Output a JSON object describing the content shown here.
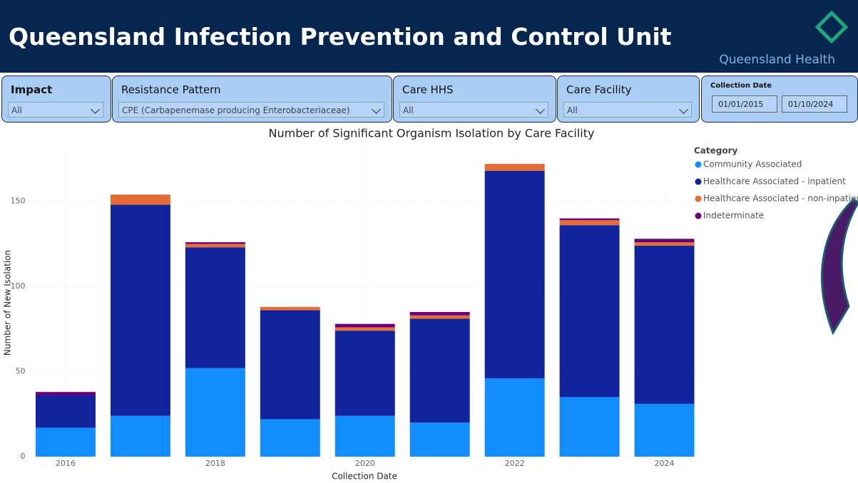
{
  "header": {
    "title": "Queensland Infection Prevention and Control Unit",
    "brand": "Queensland Health"
  },
  "filters": [
    {
      "label": "Impact",
      "value": "All"
    },
    {
      "label": "Resistance Pattern",
      "value": "CPE (Carbapenemase producing Enterobacteriaceae)"
    },
    {
      "label": "Care HHS",
      "value": "All"
    },
    {
      "label": "Care Facility",
      "value": "All"
    }
  ],
  "date_filter": {
    "label": "Collection Date",
    "start": "01/01/2015",
    "end": "01/10/2024"
  },
  "chart_data": {
    "type": "stacked_bar",
    "title": "Number of Significant Organism Isolation by Care Facility",
    "x_label": "Collection Date",
    "y_label": "Number of New Isolation",
    "x": [
      2016,
      2017,
      2018,
      2019,
      2020,
      2021,
      2022,
      2023,
      2024
    ],
    "xlim": [
      2015.5,
      2024.5
    ],
    "xticks": [
      2016,
      2018,
      2020,
      2022,
      2024
    ],
    "ylim": [
      0,
      180
    ],
    "yticks": [
      0,
      50,
      100,
      150
    ],
    "grid": true,
    "legend_title": "Category",
    "legend": "top-right",
    "series": [
      {
        "name": "Community Associated",
        "color": "#118dff",
        "values": [
          17,
          24,
          52,
          22,
          24,
          20,
          46,
          35,
          31
        ]
      },
      {
        "name": "Healthcare Associated - inpatient",
        "color": "#12239e",
        "values": [
          19,
          124,
          71,
          64,
          50,
          61,
          122,
          101,
          93
        ]
      },
      {
        "name": "Healthcare Associated - non-inpatient",
        "color": "#e66c37",
        "values": [
          0,
          6,
          2,
          2,
          2,
          2,
          4,
          3,
          2
        ]
      },
      {
        "name": "Indeterminate",
        "color": "#6b007b",
        "values": [
          2,
          0,
          1,
          0,
          2,
          2,
          0,
          1,
          2
        ]
      }
    ]
  }
}
